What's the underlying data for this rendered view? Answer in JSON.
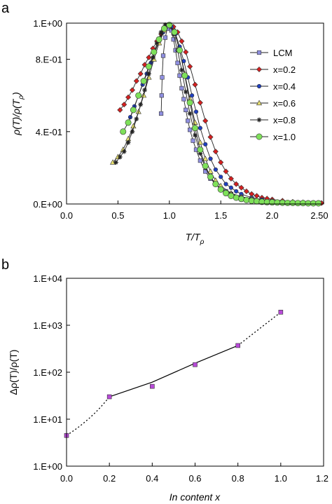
{
  "chart_data": [
    {
      "panel_label": "a",
      "type": "scatter",
      "xlabel": "T/T",
      "xlabel_sub": "ρ",
      "ylabel": "ρ(T)/ρ(T",
      "ylabel_sub": "ρ",
      "ylabel_end": ")",
      "xlim": [
        0,
        2.5
      ],
      "ylim": [
        0,
        1.0
      ],
      "x_ticks": [
        0,
        0.5,
        1.0,
        1.5,
        2.0,
        2.5
      ],
      "x_tick_labels": [
        "0.0",
        "0.5",
        "1.0",
        "1.5",
        "2.0",
        "2.50"
      ],
      "y_ticks": [
        0,
        0.4,
        0.8,
        1.0
      ],
      "y_tick_labels": [
        "0.E+00",
        "4.E-01",
        "8.E-01",
        "1.E+00"
      ],
      "grid": false,
      "legend_position": "top-right",
      "series": [
        {
          "name": "LCM",
          "marker": "square",
          "color": "#8f8fe0",
          "x": [
            0.92,
            0.925,
            0.93,
            0.94,
            0.96,
            0.98,
            1.0,
            1.02,
            1.04,
            1.06,
            1.08,
            1.1,
            1.12,
            1.14,
            1.16,
            1.18,
            1.2,
            1.23,
            1.26,
            1.3,
            1.35,
            1.4,
            1.45,
            1.5,
            1.55,
            1.6,
            1.7,
            1.8,
            1.9,
            2.0,
            2.1,
            2.2,
            2.3,
            2.4
          ],
          "y": [
            0.5,
            0.6,
            0.7,
            0.82,
            0.92,
            0.97,
            0.99,
            0.96,
            0.91,
            0.85,
            0.78,
            0.71,
            0.64,
            0.58,
            0.52,
            0.46,
            0.41,
            0.35,
            0.3,
            0.24,
            0.18,
            0.14,
            0.11,
            0.085,
            0.07,
            0.055,
            0.04,
            0.03,
            0.02,
            0.015,
            0.01,
            0.008,
            0.006,
            0.005
          ]
        },
        {
          "name": "x=0.2",
          "marker": "diamond",
          "color": "#d42020",
          "x": [
            0.52,
            0.56,
            0.6,
            0.64,
            0.68,
            0.72,
            0.76,
            0.8,
            0.84,
            0.88,
            0.92,
            0.96,
            1.0,
            1.04,
            1.08,
            1.12,
            1.16,
            1.2,
            1.25,
            1.3,
            1.35,
            1.4,
            1.45,
            1.5,
            1.55,
            1.6,
            1.65,
            1.7,
            1.75,
            1.8,
            1.85,
            1.9,
            1.95,
            2.0,
            2.1,
            2.2,
            2.3,
            2.4,
            2.48
          ],
          "y": [
            0.52,
            0.55,
            0.59,
            0.63,
            0.68,
            0.72,
            0.77,
            0.81,
            0.86,
            0.9,
            0.94,
            0.97,
            0.99,
            0.98,
            0.95,
            0.9,
            0.84,
            0.76,
            0.66,
            0.56,
            0.46,
            0.37,
            0.29,
            0.23,
            0.18,
            0.14,
            0.11,
            0.09,
            0.07,
            0.055,
            0.045,
            0.035,
            0.03,
            0.025,
            0.018,
            0.012,
            0.009,
            0.006,
            0.005
          ]
        },
        {
          "name": "x=0.4",
          "marker": "circle",
          "color": "#1f3fbf",
          "x": [
            0.62,
            0.66,
            0.7,
            0.74,
            0.78,
            0.82,
            0.86,
            0.9,
            0.94,
            0.98,
            1.02,
            1.06,
            1.1,
            1.14,
            1.18,
            1.22,
            1.26,
            1.3,
            1.35,
            1.4,
            1.45,
            1.5,
            1.55,
            1.6,
            1.65,
            1.7,
            1.8,
            1.9,
            2.0,
            2.1,
            2.2,
            2.3
          ],
          "y": [
            0.48,
            0.54,
            0.6,
            0.66,
            0.72,
            0.78,
            0.84,
            0.9,
            0.95,
            0.99,
            0.98,
            0.94,
            0.87,
            0.79,
            0.7,
            0.6,
            0.51,
            0.42,
            0.33,
            0.25,
            0.19,
            0.15,
            0.11,
            0.09,
            0.07,
            0.055,
            0.035,
            0.025,
            0.018,
            0.012,
            0.008,
            0.006
          ]
        },
        {
          "name": "x=0.6",
          "marker": "triangle",
          "color": "#e8e070",
          "x": [
            0.45,
            0.5,
            0.55,
            0.6,
            0.65,
            0.7,
            0.75,
            0.8,
            0.85,
            0.9,
            0.95,
            1.0,
            1.05,
            1.1,
            1.15,
            1.2,
            1.25,
            1.3,
            1.35,
            1.4,
            1.45,
            1.5,
            1.6,
            1.7,
            1.8,
            1.9,
            2.0,
            2.1,
            2.2
          ],
          "y": [
            0.23,
            0.26,
            0.3,
            0.36,
            0.43,
            0.51,
            0.6,
            0.7,
            0.8,
            0.89,
            0.96,
            0.99,
            0.95,
            0.85,
            0.72,
            0.58,
            0.45,
            0.34,
            0.25,
            0.18,
            0.13,
            0.1,
            0.06,
            0.04,
            0.03,
            0.02,
            0.015,
            0.01,
            0.007
          ]
        },
        {
          "name": "x=0.8",
          "marker": "star",
          "color": "#222222",
          "x": [
            0.48,
            0.52,
            0.56,
            0.6,
            0.64,
            0.68,
            0.72,
            0.76,
            0.8,
            0.84,
            0.88,
            0.92,
            0.96,
            1.0,
            1.04,
            1.08,
            1.12,
            1.16,
            1.2,
            1.25,
            1.3,
            1.35,
            1.4,
            1.45,
            1.5,
            1.6,
            1.7,
            1.8,
            1.9,
            2.0,
            2.1
          ],
          "y": [
            0.23,
            0.26,
            0.29,
            0.34,
            0.4,
            0.47,
            0.55,
            0.63,
            0.72,
            0.81,
            0.89,
            0.95,
            0.99,
            0.99,
            0.94,
            0.85,
            0.74,
            0.62,
            0.5,
            0.38,
            0.28,
            0.2,
            0.15,
            0.11,
            0.085,
            0.055,
            0.035,
            0.025,
            0.018,
            0.012,
            0.008
          ]
        },
        {
          "name": "x=1.0",
          "marker": "circle",
          "color": "#7ee05a",
          "x": [
            0.55,
            0.6,
            0.65,
            0.7,
            0.75,
            0.8,
            0.85,
            0.9,
            0.95,
            1.0,
            1.05,
            1.1,
            1.15,
            1.2,
            1.25,
            1.3,
            1.35,
            1.4,
            1.45,
            1.5,
            1.55,
            1.6,
            1.65,
            1.7,
            1.75,
            1.8,
            1.85,
            1.9,
            1.95,
            2.0,
            2.05,
            2.1,
            2.15,
            2.2,
            2.25,
            2.3,
            2.35,
            2.4,
            2.45
          ],
          "y": [
            0.4,
            0.45,
            0.52,
            0.6,
            0.68,
            0.76,
            0.84,
            0.91,
            0.97,
            0.99,
            0.95,
            0.85,
            0.71,
            0.56,
            0.42,
            0.3,
            0.21,
            0.15,
            0.11,
            0.08,
            0.06,
            0.045,
            0.035,
            0.028,
            0.022,
            0.018,
            0.015,
            0.012,
            0.01,
            0.009,
            0.008,
            0.007,
            0.006,
            0.006,
            0.005,
            0.005,
            0.004,
            0.004,
            0.004
          ]
        }
      ]
    },
    {
      "panel_label": "b",
      "type": "scatter",
      "xlabel": "In content x",
      "ylabel": "Δρ(T)/ρ(T)",
      "xlim": [
        0,
        1.2
      ],
      "ylim": [
        1,
        10000
      ],
      "y_scale": "log",
      "x_ticks": [
        0,
        0.2,
        0.4,
        0.6,
        0.8,
        1.0,
        1.2
      ],
      "x_tick_labels": [
        "0.0",
        "0.2",
        "0.4",
        "0.6",
        "0.8",
        "1.0",
        "1.2"
      ],
      "y_ticks": [
        1,
        10,
        100,
        1000,
        10000
      ],
      "y_tick_labels": [
        "1.E+00",
        "1.E+01",
        "1.E+02",
        "1.E+03",
        "1.E+04"
      ],
      "grid": false,
      "series": [
        {
          "marker": "square",
          "color": "#b84ad8",
          "x": [
            0.0,
            0.2,
            0.4,
            0.6,
            0.8,
            1.0
          ],
          "y": [
            4.5,
            30,
            50,
            145,
            370,
            1900
          ]
        }
      ]
    }
  ]
}
